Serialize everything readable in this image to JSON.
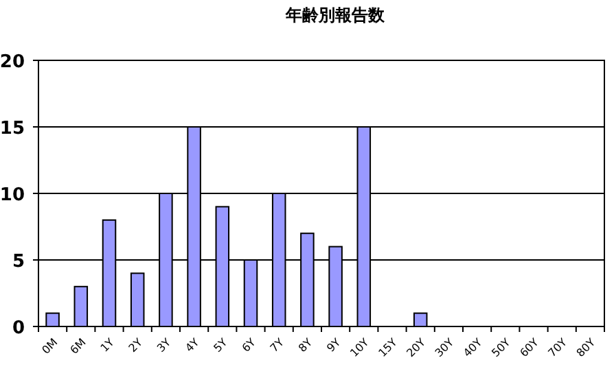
{
  "chart_data": {
    "type": "bar",
    "title": "年齢別報告数",
    "categories": [
      "0M",
      "6M",
      "1Y",
      "2Y",
      "3Y",
      "4Y",
      "5Y",
      "6Y",
      "7Y",
      "8Y",
      "9Y",
      "10Y",
      "15Y",
      "20Y",
      "30Y",
      "40Y",
      "50Y",
      "60Y",
      "70Y",
      "80Y"
    ],
    "values": [
      1,
      3,
      8,
      4,
      10,
      15,
      9,
      5,
      10,
      7,
      6,
      15,
      0,
      1,
      0,
      0,
      0,
      0,
      0,
      0
    ],
    "color": "#9999ff",
    "ylim": [
      0,
      20
    ],
    "yticks": [
      0,
      5,
      10,
      15,
      20
    ],
    "grid": "y"
  }
}
